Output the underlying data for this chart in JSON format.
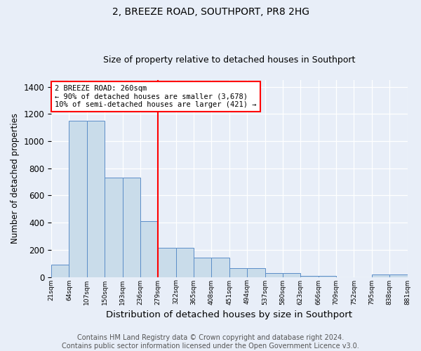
{
  "title": "2, BREEZE ROAD, SOUTHPORT, PR8 2HG",
  "subtitle": "Size of property relative to detached houses in Southport",
  "xlabel": "Distribution of detached houses by size in Southport",
  "ylabel": "Number of detached properties",
  "categories": [
    "21sqm",
    "64sqm",
    "107sqm",
    "150sqm",
    "193sqm",
    "236sqm",
    "279sqm",
    "322sqm",
    "365sqm",
    "408sqm",
    "451sqm",
    "494sqm",
    "537sqm",
    "580sqm",
    "623sqm",
    "666sqm",
    "709sqm",
    "752sqm",
    "795sqm",
    "838sqm",
    "881sqm"
  ],
  "bar_heights": [
    90,
    1150,
    1150,
    730,
    730,
    410,
    215,
    215,
    140,
    140,
    65,
    65,
    30,
    30,
    8,
    8,
    0,
    0,
    20,
    20
  ],
  "bar_color": "#c9dcea",
  "bar_edge_color": "#5b8dc8",
  "annotation_box_text": "2 BREEZE ROAD: 260sqm\n← 90% of detached houses are smaller (3,678)\n10% of semi-detached houses are larger (421) →",
  "annotation_box_color": "white",
  "annotation_box_edge_color": "red",
  "vline_color": "red",
  "footer_text": "Contains HM Land Registry data © Crown copyright and database right 2024.\nContains public sector information licensed under the Open Government Licence v3.0.",
  "ylim": [
    0,
    1450
  ],
  "background_color": "#e8eef8",
  "title_fontsize": 10,
  "subtitle_fontsize": 9,
  "ylabel_fontsize": 8.5,
  "xlabel_fontsize": 9.5,
  "footer_fontsize": 7
}
